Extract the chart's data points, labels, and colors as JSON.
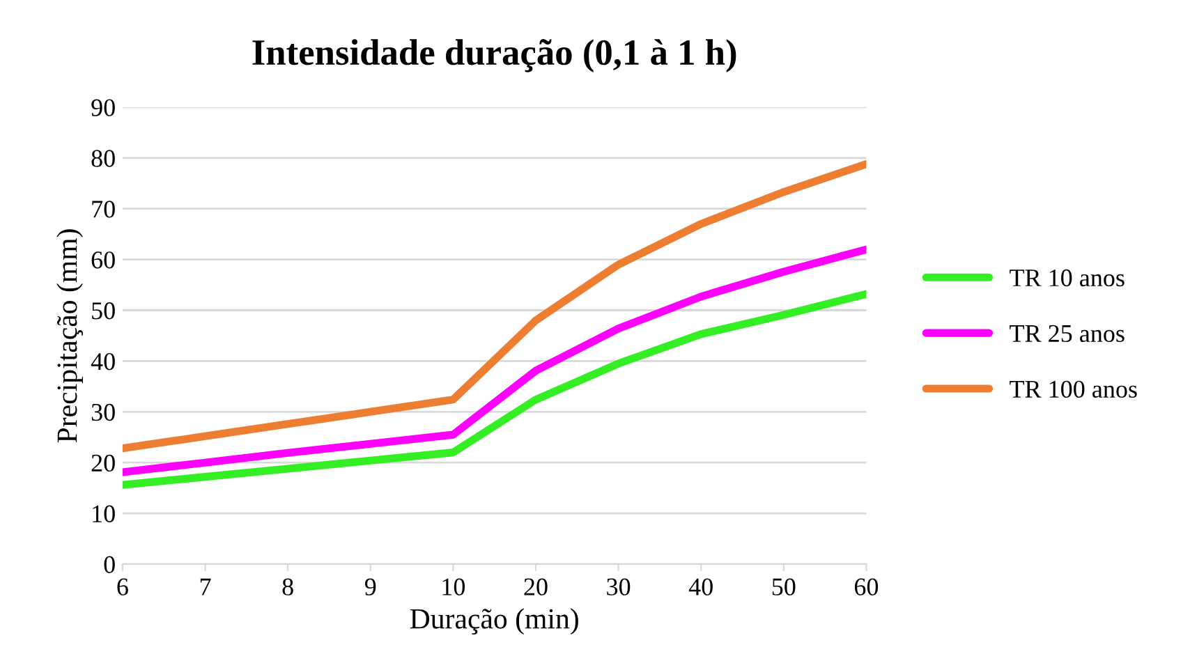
{
  "chart_data": {
    "type": "line",
    "title": "Intensidade duração (0,1 à 1 h)",
    "xlabel": "Duração (min)",
    "ylabel": "Precipitação (mm)",
    "categories": [
      "6",
      "7",
      "8",
      "9",
      "10",
      "20",
      "30",
      "40",
      "50",
      "60"
    ],
    "series": [
      {
        "name": "TR 10 anos",
        "color": "#33ee22",
        "values": [
          15.6,
          17.2,
          18.8,
          20.4,
          22,
          32.4,
          39.5,
          45.3,
          49.1,
          53.2
        ]
      },
      {
        "name": "TR 25 anos",
        "color": "#ff00ff",
        "values": [
          18.1,
          20,
          21.9,
          23.7,
          25.5,
          38.1,
          46.4,
          52.7,
          57.6,
          62
        ]
      },
      {
        "name": "TR 100 anos",
        "color": "#ed7d31",
        "values": [
          22.8,
          25.2,
          27.6,
          30,
          32.4,
          48,
          59,
          67,
          73.3,
          78.8
        ]
      }
    ],
    "ylim": [
      0,
      90
    ],
    "yticks": [
      0,
      10,
      20,
      30,
      40,
      50,
      60,
      70,
      80,
      90
    ],
    "grid": "y",
    "legend": "right",
    "marker": "none",
    "line_style": "solid"
  }
}
